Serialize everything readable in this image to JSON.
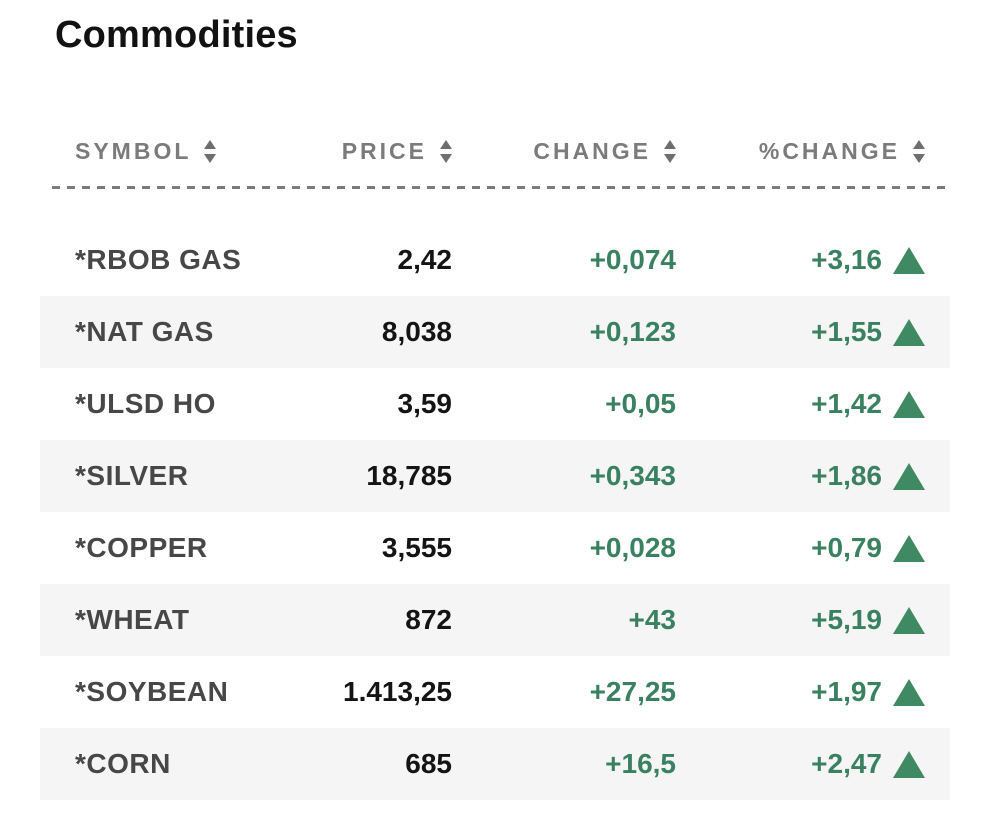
{
  "page": {
    "title": "Commodities"
  },
  "colors": {
    "positive_text": "#3a8161",
    "positive_triangle": "#3f8a63",
    "header_text": "#7b7b7b",
    "symbol_text": "#474747",
    "price_text": "#141414",
    "row_alt_bg": "#f5f5f5",
    "divider": "#7a7a7a"
  },
  "table": {
    "columns": [
      {
        "key": "symbol",
        "label": "SYMBOL",
        "sortable": true
      },
      {
        "key": "price",
        "label": "PRICE",
        "sortable": true
      },
      {
        "key": "change",
        "label": "CHANGE",
        "sortable": true
      },
      {
        "key": "pct_change",
        "label": "%CHANGE",
        "sortable": true
      }
    ],
    "rows": [
      {
        "symbol": "*RBOB GAS",
        "price": "2,42",
        "change": "+0,074",
        "pct_change": "+3,16",
        "direction": "up"
      },
      {
        "symbol": "*NAT GAS",
        "price": "8,038",
        "change": "+0,123",
        "pct_change": "+1,55",
        "direction": "up"
      },
      {
        "symbol": "*ULSD HO",
        "price": "3,59",
        "change": "+0,05",
        "pct_change": "+1,42",
        "direction": "up"
      },
      {
        "symbol": "*SILVER",
        "price": "18,785",
        "change": "+0,343",
        "pct_change": "+1,86",
        "direction": "up"
      },
      {
        "symbol": "*COPPER",
        "price": "3,555",
        "change": "+0,028",
        "pct_change": "+0,79",
        "direction": "up"
      },
      {
        "symbol": "*WHEAT",
        "price": "872",
        "change": "+43",
        "pct_change": "+5,19",
        "direction": "up"
      },
      {
        "symbol": "*SOYBEAN",
        "price": "1.413,25",
        "change": "+27,25",
        "pct_change": "+1,97",
        "direction": "up"
      },
      {
        "symbol": "*CORN",
        "price": "685",
        "change": "+16,5",
        "pct_change": "+2,47",
        "direction": "up"
      }
    ]
  }
}
